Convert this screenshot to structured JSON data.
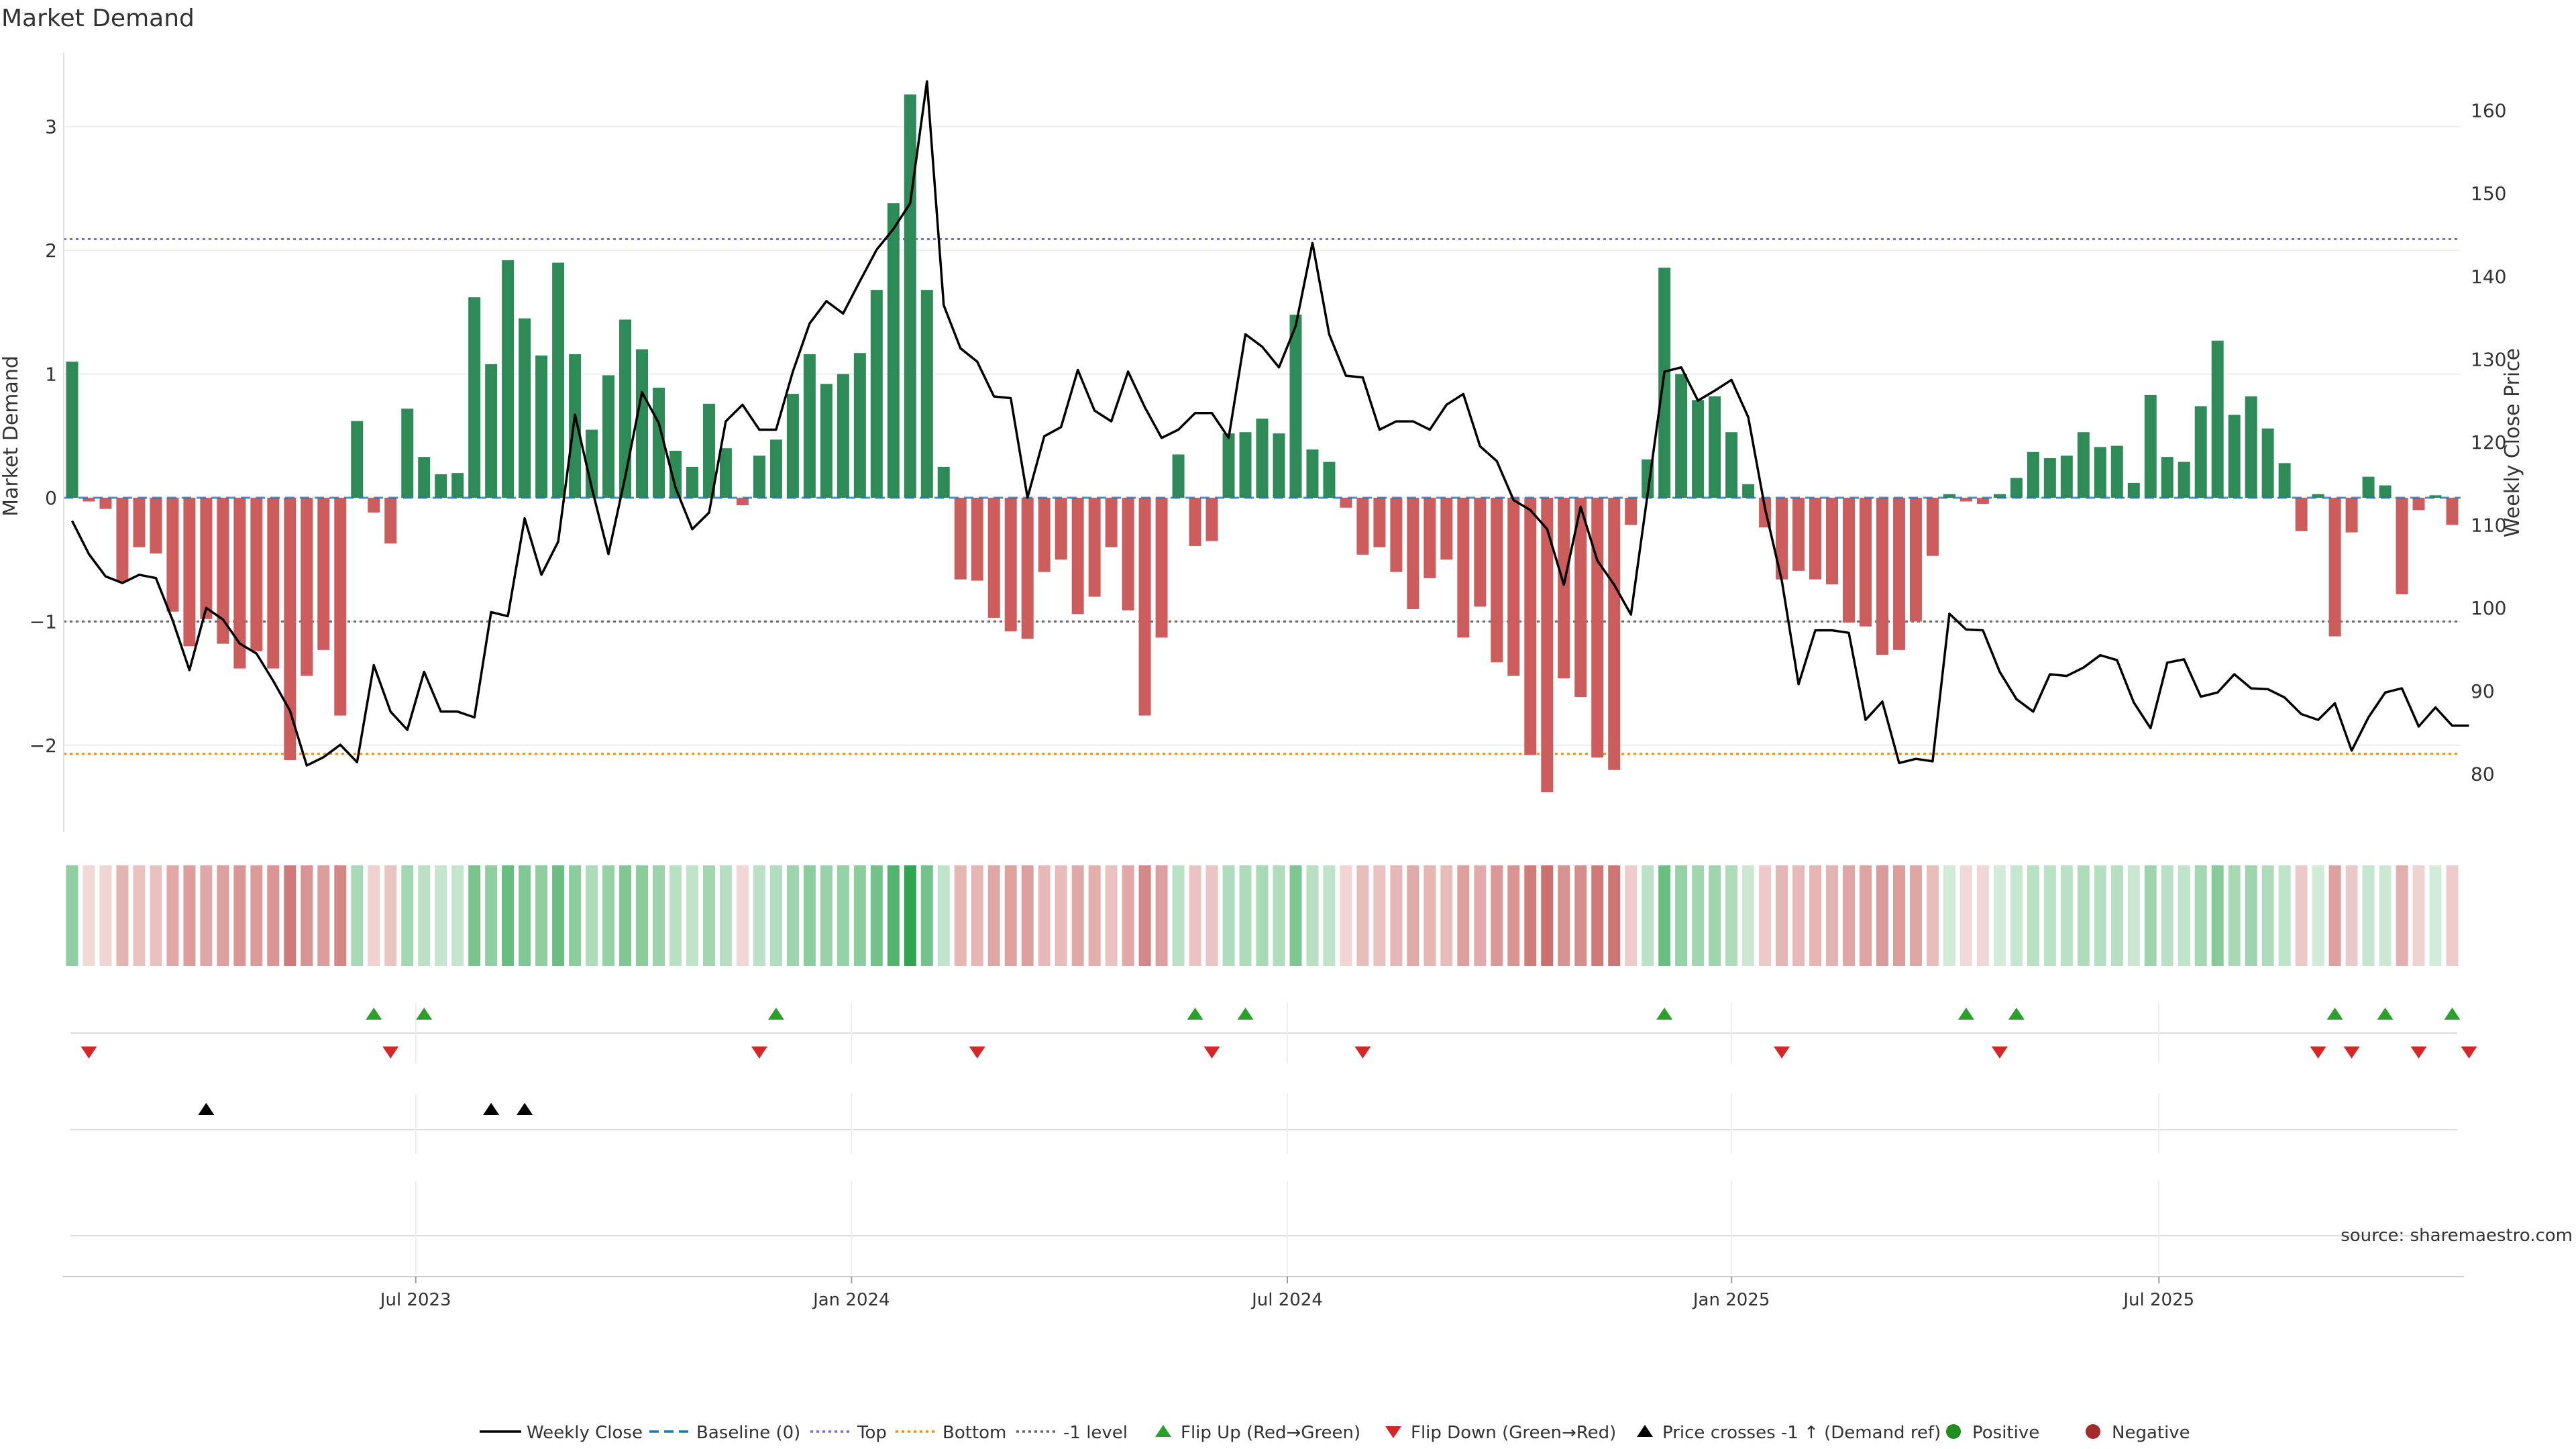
{
  "chart_data": {
    "type": "bar",
    "title": "Market Demand",
    "ylabel": "Market Demand",
    "y2label": "Weekly Close Price",
    "ylim": [
      -2.7,
      3.6
    ],
    "y2lim": [
      73,
      167
    ],
    "yticks": [
      -2,
      -1,
      0,
      1,
      2,
      3
    ],
    "y2ticks": [
      80,
      90,
      100,
      110,
      120,
      130,
      140,
      150,
      160
    ],
    "xlim": [
      0,
      144
    ],
    "xticks": [
      {
        "label": "Jul 2023",
        "idx": 21
      },
      {
        "label": "Jan 2024",
        "idx": 47
      },
      {
        "label": "Jul 2024",
        "idx": 73
      },
      {
        "label": "Jan 2025",
        "idx": 99.5
      },
      {
        "label": "Jul 2025",
        "idx": 125
      }
    ],
    "levels": {
      "top": 2.09,
      "bottom": -2.07,
      "minus_one": -1
    },
    "colors": {
      "positive": "#2e8b57",
      "negative": "#cd5c5c",
      "price": "#000000",
      "top": "#7b68ee",
      "bottom": "#ff8c00",
      "minus_one": "#666666",
      "baseline": "#1f77b4",
      "flip_up": "#2ca02c",
      "flip_down": "#d62728"
    },
    "series": [
      {
        "name": "Market Demand",
        "values": [
          1.1,
          -0.03,
          -0.09,
          -0.68,
          -0.4,
          -0.45,
          -0.92,
          -1.2,
          -0.98,
          -1.18,
          -1.38,
          -1.24,
          -1.38,
          -2.12,
          -1.44,
          -1.23,
          -1.76,
          0.62,
          -0.12,
          -0.37,
          0.72,
          0.33,
          0.19,
          0.2,
          1.62,
          1.08,
          1.92,
          1.45,
          1.15,
          1.9,
          1.16,
          0.55,
          0.99,
          1.44,
          1.2,
          0.89,
          0.38,
          0.25,
          0.76,
          0.4,
          -0.06,
          0.34,
          0.47,
          0.84,
          1.16,
          0.92,
          1.0,
          1.17,
          1.68,
          2.38,
          3.26,
          1.68,
          0.25,
          -0.66,
          -0.67,
          -0.97,
          -1.08,
          -1.14,
          -0.6,
          -0.5,
          -0.94,
          -0.8,
          -0.4,
          -0.91,
          -1.76,
          -1.13,
          0.35,
          -0.39,
          -0.35,
          0.52,
          0.53,
          0.64,
          0.52,
          1.48,
          0.39,
          0.29,
          -0.08,
          -0.46,
          -0.4,
          -0.6,
          -0.9,
          -0.65,
          -0.5,
          -1.13,
          -0.88,
          -1.33,
          -1.44,
          -2.08,
          -2.38,
          -1.46,
          -1.61,
          -2.1,
          -2.2,
          -0.22,
          0.31,
          1.86,
          1.0,
          0.79,
          0.82,
          0.53,
          0.11,
          -0.24,
          -0.66,
          -0.59,
          -0.66,
          -0.7,
          -1.01,
          -1.04,
          -1.27,
          -1.23,
          -1.0,
          -0.47,
          0.03,
          -0.03,
          -0.05,
          0.03,
          0.16,
          0.37,
          0.32,
          0.34,
          0.53,
          0.41,
          0.42,
          0.12,
          0.83,
          0.33,
          0.29,
          0.74,
          1.27,
          0.67,
          0.82,
          0.56,
          0.28,
          -0.27,
          0.03,
          -1.12,
          -0.28,
          0.17,
          0.1,
          -0.78,
          -0.1,
          0.02,
          -0.22
        ]
      },
      {
        "name": "Weekly Close",
        "values": [
          110.5,
          106.5,
          103.8,
          103,
          104,
          103.6,
          98.5,
          92.5,
          100,
          98.6,
          95.7,
          94.5,
          91.2,
          87.6,
          81,
          82,
          83.5,
          81.4,
          93.1,
          87.5,
          85.3,
          92.3,
          87.5,
          87.5,
          86.8,
          99.5,
          99,
          110.8,
          104,
          108,
          123.3,
          114.5,
          106.5,
          115.8,
          126,
          122.3,
          114.5,
          109.5,
          111.5,
          122.5,
          124.5,
          121.5,
          121.5,
          128.5,
          134.3,
          137,
          135.5,
          139.4,
          143.2,
          145.7,
          148.8,
          163.5,
          136.5,
          131.3,
          129.7,
          125.5,
          125.3,
          113.3,
          120.7,
          121.8,
          128.7,
          123.8,
          122.5,
          128.5,
          124.2,
          120.5,
          121.5,
          123.5,
          123.5,
          120.5,
          133,
          131.5,
          129,
          134,
          144,
          133,
          128,
          127.8,
          121.5,
          122.5,
          122.5,
          121.5,
          124.5,
          125.8,
          119.5,
          117.7,
          113,
          111.8,
          109.5,
          102.8,
          112.2,
          105.7,
          102.8,
          99.2,
          113.8,
          128.5,
          129,
          125,
          126.2,
          127.5,
          123,
          112,
          103.3,
          90.8,
          97.3,
          97.3,
          97,
          86.5,
          88.7,
          81.3,
          81.8,
          81.5,
          99.3,
          97.4,
          97.3,
          92.3,
          89,
          87.5,
          92,
          91.8,
          92.8,
          94.3,
          93.7,
          88.6,
          85.5,
          93.4,
          93.8,
          89.3,
          89.8,
          92,
          90.3,
          90.2,
          89.2,
          87.2,
          86.5,
          88.5,
          82.8,
          86.8,
          89.8,
          90.3,
          85.7,
          88,
          85.8,
          85.8
        ]
      }
    ],
    "flip_up": [
      18,
      21,
      42,
      67,
      70,
      95,
      113,
      116,
      135,
      138,
      142
    ],
    "flip_down": [
      1,
      19,
      41,
      54,
      68,
      77,
      102,
      115,
      134,
      136,
      140,
      143
    ],
    "price_crosses": [
      8,
      25,
      27
    ],
    "legend": [
      "Weekly Close",
      "Baseline (0)",
      "Top",
      "Bottom",
      "-1 level",
      "Flip Up (Red→Green)",
      "Flip Down (Green→Red)",
      "Price crosses -1 ↑ (Demand ref)",
      "Positive",
      "Negative"
    ],
    "legend_position": "bottom-center",
    "source": "source: sharemaestro.com"
  }
}
